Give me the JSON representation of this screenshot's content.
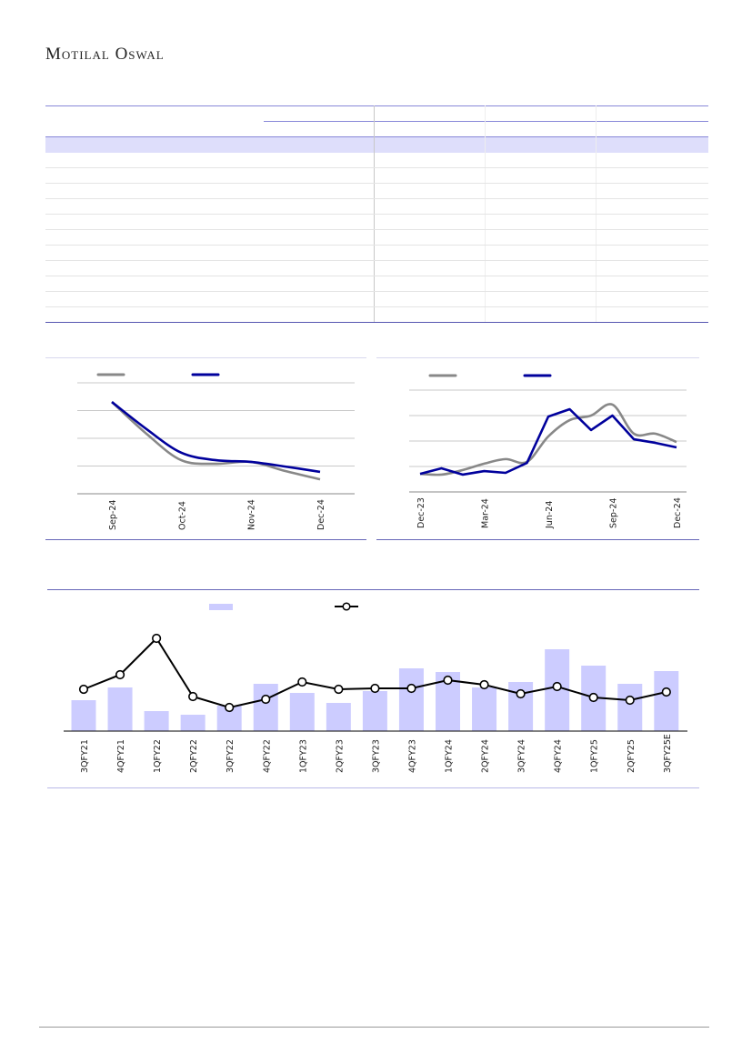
{
  "header": {
    "logo": "Motilal Oswal"
  },
  "table": {
    "rows": 11
  },
  "colors": {
    "accent_line": "#8888d8",
    "shade": "#dedefb",
    "series_gray": "#888888",
    "series_blue": "#00009c",
    "bar": "#ccccff",
    "line": "#000000"
  },
  "chart_data": [
    {
      "type": "line",
      "x_labels": [
        "Sep-24",
        "Oct-24",
        "Nov-24",
        "Dec-24"
      ],
      "x_points": 7,
      "ylim": [
        0,
        4
      ],
      "grid": true,
      "series": [
        {
          "name": "",
          "color": "#888888",
          "values": [
            3.31,
            2.16,
            1.21,
            1.08,
            1.15,
            0.82,
            0.52
          ]
        },
        {
          "name": "",
          "color": "#00009c",
          "values": [
            3.31,
            2.33,
            1.48,
            1.21,
            1.15,
            0.98,
            0.79
          ]
        }
      ],
      "legend": "top-left"
    },
    {
      "type": "line",
      "x_labels": [
        "Dec-23",
        "Mar-24",
        "Jun-24",
        "Sep-24",
        "Dec-24"
      ],
      "x_points": 13,
      "ylim": [
        0,
        4
      ],
      "grid": true,
      "series": [
        {
          "name": "",
          "color": "#888888",
          "values": [
            0.71,
            0.68,
            0.86,
            1.11,
            1.29,
            1.18,
            2.18,
            2.82,
            3.0,
            3.43,
            2.29,
            2.29,
            1.96
          ]
        },
        {
          "name": "",
          "color": "#00009c",
          "values": [
            0.71,
            0.93,
            0.68,
            0.82,
            0.75,
            1.14,
            2.96,
            3.25,
            2.43,
            3.0,
            2.07,
            1.93,
            1.75
          ]
        }
      ],
      "legend": "top-left"
    },
    {
      "type": "bar",
      "categories": [
        "3QFY21",
        "4QFY21",
        "1QFY22",
        "2QFY22",
        "3QFY22",
        "4QFY22",
        "1QFY23",
        "2QFY23",
        "3QFY23",
        "4QFY23",
        "1QFY24",
        "2QFY24",
        "3QFY24",
        "4QFY24",
        "1QFY25",
        "2QFY25",
        "3QFY25E"
      ],
      "ylim": [
        0,
        110
      ],
      "series": [
        {
          "name": "",
          "type": "bar",
          "color": "#ccccff",
          "values": [
            34,
            48,
            22,
            18,
            28,
            52,
            42,
            31,
            44,
            69,
            65,
            48,
            54,
            90,
            72,
            52,
            66
          ]
        },
        {
          "name": "",
          "type": "line",
          "color": "#000000",
          "values": [
            46,
            62,
            102,
            38,
            26,
            35,
            54,
            46,
            47,
            47,
            56,
            51,
            41,
            49,
            37,
            34,
            43
          ]
        }
      ],
      "legend": "top-center"
    }
  ]
}
